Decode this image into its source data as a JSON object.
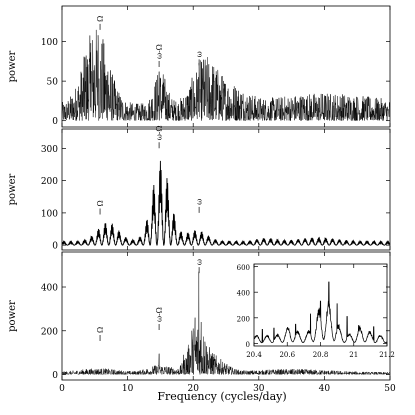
{
  "figure": {
    "xlabel": "Frequency (cycles/day)",
    "ylabel": "power"
  },
  "chart_data": [
    {
      "type": "line",
      "panel": "top",
      "ylabel": "power",
      "xlim": [
        0,
        50
      ],
      "ylim": [
        -8,
        145
      ],
      "yticks": [
        0,
        50,
        100
      ],
      "xticks": [
        0,
        10,
        20,
        30,
        40,
        50
      ],
      "show_xtick_labels": false,
      "peaks": [
        {
          "x": 5.5,
          "y": 108
        },
        {
          "x": 4.4,
          "y": 98
        },
        {
          "x": 6.2,
          "y": 95
        },
        {
          "x": 3.5,
          "y": 80
        },
        {
          "x": 5.0,
          "y": 70
        },
        {
          "x": 7.0,
          "y": 62
        },
        {
          "x": 14.8,
          "y": 62
        },
        {
          "x": 15.5,
          "y": 48
        },
        {
          "x": 20.8,
          "y": 55
        },
        {
          "x": 21.8,
          "y": 66
        },
        {
          "x": 22.8,
          "y": 45
        },
        {
          "x": 24.5,
          "y": 35
        }
      ],
      "markers": [
        {
          "x": 5.8,
          "label": "Ω"
        },
        {
          "x": 14.8,
          "label": "ω-Ω"
        },
        {
          "x": 20.9,
          "label": "ω"
        }
      ]
    },
    {
      "type": "line",
      "panel": "middle",
      "ylabel": "power",
      "xlim": [
        0,
        50
      ],
      "ylim": [
        -15,
        360
      ],
      "yticks": [
        0,
        100,
        200,
        300
      ],
      "xticks": [
        0,
        10,
        20,
        30,
        40,
        50
      ],
      "show_xtick_labels": false,
      "peaks": [
        {
          "x": 15.0,
          "y": 270
        },
        {
          "x": 16.0,
          "y": 215
        },
        {
          "x": 14.0,
          "y": 200
        },
        {
          "x": 17.2,
          "y": 155
        },
        {
          "x": 13.0,
          "y": 125
        },
        {
          "x": 12.0,
          "y": 90
        },
        {
          "x": 18.3,
          "y": 100
        },
        {
          "x": 7.0,
          "y": 80
        },
        {
          "x": 5.8,
          "y": 75
        },
        {
          "x": 8.0,
          "y": 68
        }
      ],
      "markers": [
        {
          "x": 5.8,
          "label": "Ω"
        },
        {
          "x": 14.8,
          "label": "ω-Ω"
        },
        {
          "x": 20.9,
          "label": "ω"
        }
      ]
    },
    {
      "type": "line",
      "panel": "bottom",
      "ylabel": "power",
      "xlabel": "Frequency (cycles/day)",
      "xlim": [
        0,
        50
      ],
      "ylim": [
        -25,
        560
      ],
      "yticks": [
        0,
        200,
        400
      ],
      "xticks": [
        0,
        10,
        20,
        30,
        40,
        50
      ],
      "show_xtick_labels": true,
      "peaks": [
        {
          "x": 20.85,
          "y": 470
        },
        {
          "x": 20.3,
          "y": 260
        },
        {
          "x": 21.2,
          "y": 240
        },
        {
          "x": 19.8,
          "y": 200
        },
        {
          "x": 21.8,
          "y": 150
        },
        {
          "x": 14.8,
          "y": 95
        },
        {
          "x": 22.5,
          "y": 100
        },
        {
          "x": 18.5,
          "y": 90
        }
      ],
      "markers": [
        {
          "x": 5.8,
          "label": "Ω"
        },
        {
          "x": 14.8,
          "label": "ω-Ω"
        },
        {
          "x": 20.9,
          "label": "ω"
        }
      ],
      "inset": {
        "type": "line",
        "xlim": [
          20.4,
          21.2
        ],
        "ylim": [
          -20,
          620
        ],
        "xticks": [
          20.4,
          20.6,
          20.8,
          21,
          21.2
        ],
        "yticks": [
          0,
          200,
          400,
          600
        ],
        "peaks": [
          {
            "x": 20.85,
            "y": 480
          },
          {
            "x": 20.8,
            "y": 330
          },
          {
            "x": 20.9,
            "y": 310
          },
          {
            "x": 20.74,
            "y": 230
          },
          {
            "x": 20.96,
            "y": 210
          },
          {
            "x": 20.65,
            "y": 150
          },
          {
            "x": 21.03,
            "y": 140
          },
          {
            "x": 20.52,
            "y": 120
          },
          {
            "x": 21.12,
            "y": 130
          },
          {
            "x": 20.45,
            "y": 110
          }
        ]
      }
    }
  ]
}
